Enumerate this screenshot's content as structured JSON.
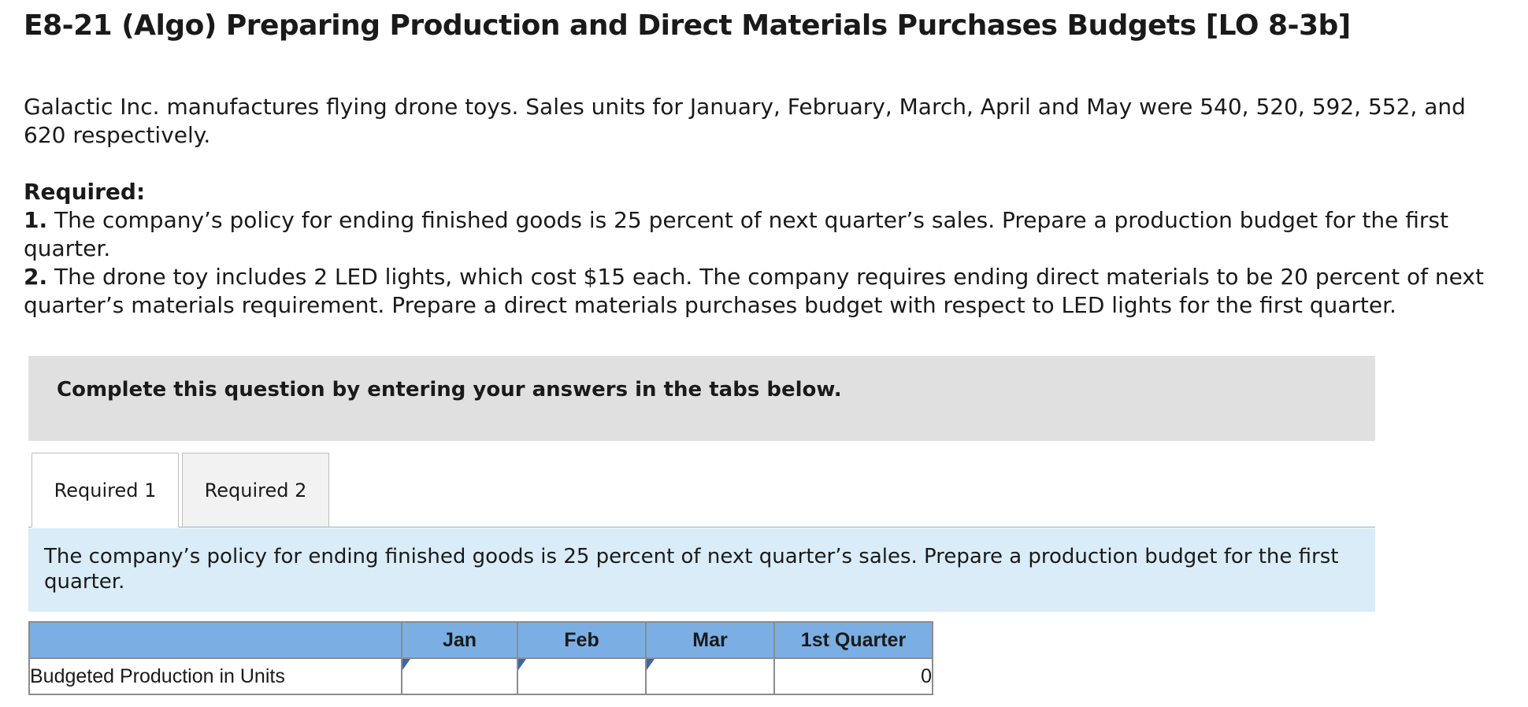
{
  "page": {
    "title": "E8-21 (Algo) Preparing Production and Direct Materials Purchases Budgets [LO 8-3b]",
    "intro": "Galactic Inc. manufactures flying drone toys. Sales units for January, February, March, April and May were 540, 520, 592, 552, and 620 respectively."
  },
  "required": {
    "heading": "Required:",
    "items": [
      {
        "number": "1.",
        "text": "The company’s policy for ending finished goods is 25 percent of next quarter’s sales. Prepare a production budget for the first quarter."
      },
      {
        "number": "2.",
        "text": "The drone toy includes 2 LED lights, which cost $15 each. The company requires ending direct materials to be 20 percent of next quarter’s materials requirement. Prepare a direct materials purchases budget with respect to LED lights for the first quarter."
      }
    ]
  },
  "instruction": "Complete this question by entering your answers in the tabs below.",
  "tabs": [
    {
      "label": "Required 1",
      "active": true
    },
    {
      "label": "Required 2",
      "active": false
    }
  ],
  "prompt": "The company’s policy for ending finished goods is 25 percent of next quarter’s sales. Prepare a production budget for the first quarter.",
  "table": {
    "headers": [
      "",
      "Jan",
      "Feb",
      "Mar",
      "1st Quarter"
    ],
    "rows": [
      {
        "label": "Budgeted Production in Units",
        "jan": "",
        "feb": "",
        "mar": "",
        "quarter": "0"
      }
    ]
  },
  "colors": {
    "instruction_bg": "#e0e0e0",
    "prompt_bg": "#d9ecf8",
    "table_header_bg": "#7bafe3",
    "input_border": "#3b66a8"
  }
}
